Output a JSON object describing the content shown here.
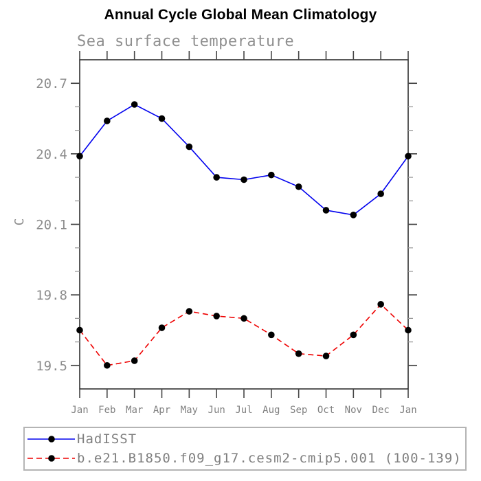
{
  "chart_data": {
    "type": "line",
    "title": "Annual Cycle Global Mean Climatology",
    "subtitle": "Sea surface temperature",
    "ylabel": "C",
    "xlabel": "",
    "categories": [
      "Jan",
      "Feb",
      "Mar",
      "Apr",
      "May",
      "Jun",
      "Jul",
      "Aug",
      "Sep",
      "Oct",
      "Nov",
      "Dec",
      "Jan"
    ],
    "series": [
      {
        "name": "HadISST",
        "color": "#0000ee",
        "line_style": "solid",
        "marker": "filled-circle",
        "marker_color": "#000000",
        "values": [
          20.39,
          20.54,
          20.61,
          20.55,
          20.43,
          20.3,
          20.29,
          20.31,
          20.26,
          20.16,
          20.14,
          20.23,
          20.39
        ]
      },
      {
        "name": "b.e21.B1850.f09_g17.cesm2-cmip5.001 (100-139)",
        "color": "#ee0000",
        "line_style": "dashed",
        "marker": "filled-circle",
        "marker_color": "#000000",
        "values": [
          19.65,
          19.5,
          19.52,
          19.66,
          19.73,
          19.71,
          19.7,
          19.63,
          19.55,
          19.54,
          19.63,
          19.76,
          19.65
        ]
      }
    ],
    "ylim": [
      19.4,
      20.8
    ],
    "y_major_ticks": [
      19.5,
      19.8,
      20.1,
      20.4,
      20.7
    ],
    "y_tick_labels": [
      "19.5",
      "19.8",
      "20.1",
      "20.4",
      "20.7"
    ],
    "y_minor_step": 0.1,
    "grid": false,
    "legend_position": "bottom-left-outside"
  },
  "colors": {
    "background": "#ffffff",
    "title": "#000000",
    "subtitle": "#8f8f8f",
    "axis": "#222222",
    "major_tick": "#444444",
    "minor_tick": "#999999",
    "tick_label": "#808080",
    "legend_border": "#b4b4b4",
    "legend_text": "#7f7f7f",
    "series_blue": "#0000ee",
    "series_red": "#ee0000",
    "marker": "#000000"
  }
}
